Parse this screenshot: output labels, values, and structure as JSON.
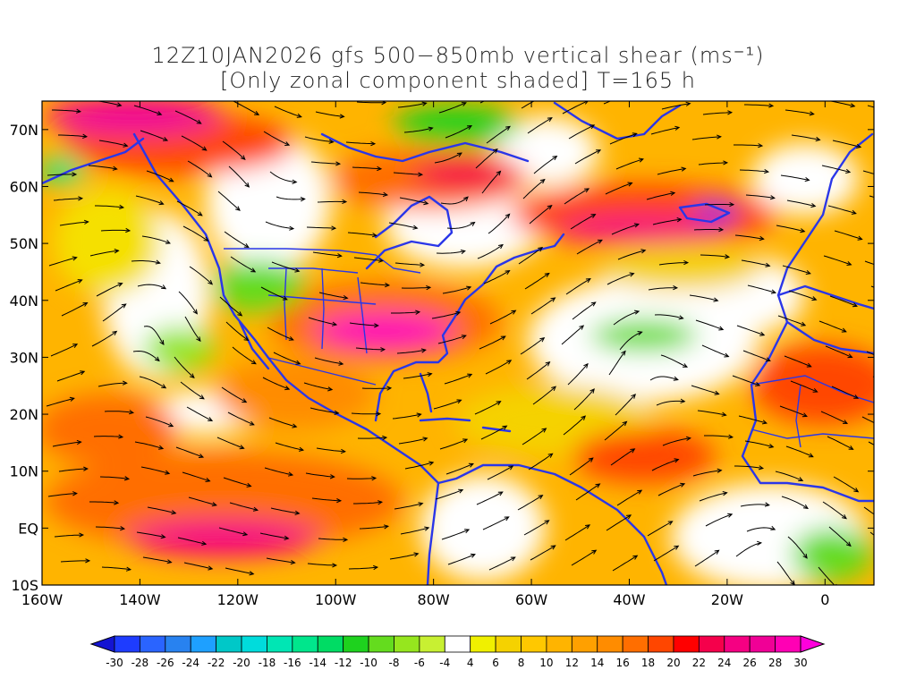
{
  "title": {
    "line1": "12Z10JAN2026 gfs 500−850mb vertical shear (ms⁻¹)",
    "line2": "[Only zonal component shaded] T=165 h"
  },
  "map": {
    "lat_labels": [
      "70N",
      "60N",
      "50N",
      "40N",
      "30N",
      "20N",
      "10N",
      "EQ",
      "10S"
    ],
    "lon_labels": [
      "160W",
      "140W",
      "120W",
      "100W",
      "80W",
      "60W",
      "40W",
      "20W",
      "0"
    ],
    "lat_range": [
      -10,
      75
    ],
    "lon_range": [
      -160,
      10
    ]
  },
  "colorbar": {
    "labels": [
      "-30",
      "-28",
      "-26",
      "-24",
      "-22",
      "-20",
      "-18",
      "-16",
      "-14",
      "-12",
      "-10",
      "-8",
      "-6",
      "-4",
      "4",
      "6",
      "8",
      "10",
      "12",
      "14",
      "16",
      "18",
      "20",
      "22",
      "24",
      "26",
      "28",
      "30"
    ],
    "colors": [
      "#1414d2",
      "#1e3cff",
      "#2a64ff",
      "#2882f0",
      "#1ea0ff",
      "#00c8c8",
      "#00dcdc",
      "#00e6b4",
      "#00e68c",
      "#00dc64",
      "#1ed21e",
      "#64dc1e",
      "#96e61e",
      "#c8f032",
      "#ffffff",
      "#f0f000",
      "#f5d200",
      "#ffc800",
      "#ffb400",
      "#ffa000",
      "#ff8c00",
      "#ff6e00",
      "#ff4600",
      "#ff0000",
      "#f5004b",
      "#f50082",
      "#f00096",
      "#ff00b4",
      "#ff00dc"
    ]
  }
}
